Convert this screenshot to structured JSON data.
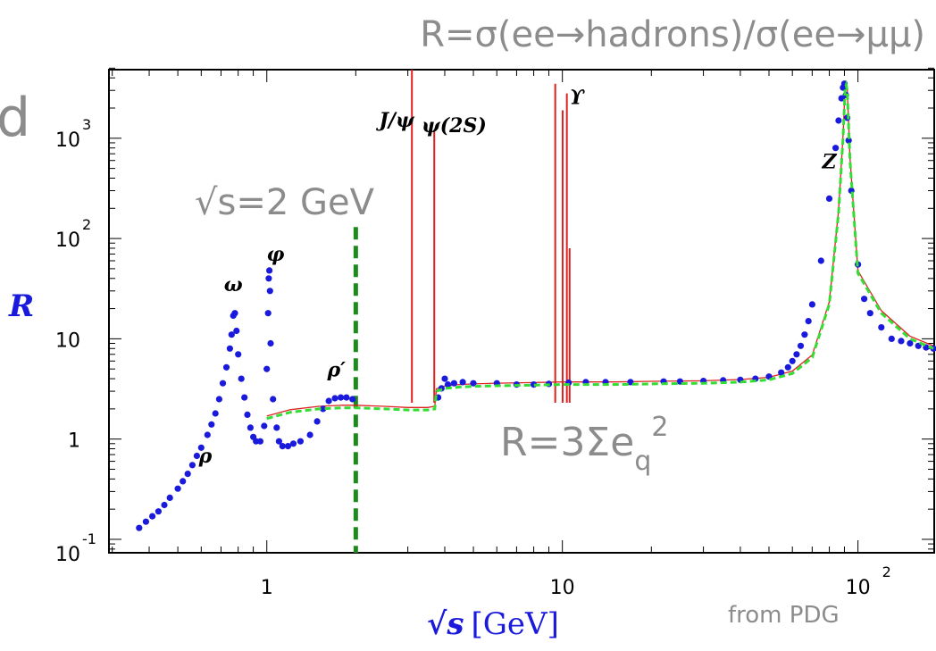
{
  "chart_data": {
    "type": "scatter",
    "title": "R=σ(ee→hadrons)/σ(ee→μμ)",
    "fragment": "d",
    "xlabel_main": "√s",
    "xlabel_unit": "[GeV]",
    "ylabel": "R",
    "x_scale": "log",
    "y_scale": "log",
    "xlim": [
      0.3,
      180
    ],
    "ylim": [
      0.1,
      5000
    ],
    "x_ticks": [
      {
        "value": 1,
        "base": "1",
        "exp": ""
      },
      {
        "value": 10,
        "base": "10",
        "exp": ""
      },
      {
        "value": 100,
        "base": "10",
        "exp": "2"
      }
    ],
    "y_ticks": [
      {
        "value": 0.1,
        "base": "10",
        "exp": "-1"
      },
      {
        "value": 1,
        "base": "1",
        "exp": ""
      },
      {
        "value": 10,
        "base": "10",
        "exp": ""
      },
      {
        "value": 100,
        "base": "10",
        "exp": "2"
      },
      {
        "value": 1000,
        "base": "10",
        "exp": "3"
      }
    ],
    "annotations": {
      "energy_cut_label": "√s=2 GeV",
      "energy_cut_value": 2,
      "parton_formula_base": "R=3Σe",
      "parton_formula_sub": "q",
      "parton_formula_sup": "2",
      "source": "from PDG"
    },
    "resonance_labels": [
      {
        "text": "ρ",
        "x": 0.62,
        "y": 0.58
      },
      {
        "text": "ω",
        "x": 0.77,
        "y": 30
      },
      {
        "text": "φ",
        "x": 1.07,
        "y": 60
      },
      {
        "text": "ρ′",
        "x": 1.72,
        "y": 4.2
      },
      {
        "text": "J/ψ",
        "x": 2.75,
        "y": 1300
      },
      {
        "text": "ψ(2S)",
        "x": 4.3,
        "y": 1150
      },
      {
        "text": "ϒ",
        "x": 11.2,
        "y": 2200
      },
      {
        "text": "Z",
        "x": 80,
        "y": 500
      }
    ],
    "series": [
      {
        "role": "measurements",
        "color": "#1a1adc",
        "x": [
          0.37,
          0.39,
          0.41,
          0.43,
          0.45,
          0.47,
          0.5,
          0.52,
          0.54,
          0.56,
          0.58,
          0.6,
          0.63,
          0.65,
          0.67,
          0.69,
          0.71,
          0.73,
          0.75,
          0.76,
          0.77,
          0.78,
          0.79,
          0.8,
          0.82,
          0.84,
          0.86,
          0.88,
          0.9,
          0.92,
          0.95,
          0.98,
          1.0,
          1.01,
          1.015,
          1.02,
          1.025,
          1.03,
          1.05,
          1.08,
          1.1,
          1.13,
          1.18,
          1.23,
          1.3,
          1.4,
          1.48,
          1.55,
          1.62,
          1.7,
          1.78,
          1.86,
          1.95,
          3.8,
          3.9,
          4.0,
          4.1,
          4.3,
          4.6,
          5.0,
          6.0,
          7.0,
          8.0,
          9.0,
          10.5,
          12,
          14,
          17,
          22,
          25,
          30,
          35,
          40,
          45,
          50,
          55,
          58,
          60,
          62,
          64,
          66,
          68,
          70,
          75,
          80,
          84,
          86,
          88,
          89,
          90,
          91,
          92,
          93,
          95,
          100,
          105,
          110,
          120,
          130,
          140,
          150,
          160,
          170,
          180
        ],
        "y": [
          0.13,
          0.15,
          0.17,
          0.19,
          0.22,
          0.26,
          0.32,
          0.38,
          0.45,
          0.55,
          0.68,
          0.82,
          1.1,
          1.4,
          1.8,
          2.5,
          3.6,
          5.2,
          8.0,
          11.0,
          17.0,
          18.0,
          12.0,
          7.0,
          4.0,
          2.6,
          1.75,
          1.3,
          1.05,
          0.95,
          0.95,
          1.35,
          5.0,
          18.0,
          40.0,
          48.0,
          30.0,
          9.0,
          2.5,
          1.3,
          0.95,
          0.85,
          0.85,
          0.9,
          0.95,
          1.1,
          1.5,
          2.0,
          2.4,
          2.55,
          2.6,
          2.6,
          2.5,
          2.6,
          3.2,
          4.0,
          3.5,
          3.6,
          3.7,
          3.6,
          3.6,
          3.5,
          3.5,
          3.55,
          3.65,
          3.7,
          3.7,
          3.7,
          3.75,
          3.75,
          3.8,
          3.85,
          3.9,
          4.0,
          4.2,
          4.6,
          5.2,
          6.0,
          7.0,
          8.5,
          11.0,
          15.0,
          22.0,
          60.0,
          250,
          800,
          1500,
          2500,
          3200,
          3500,
          2700,
          1600,
          950,
          300,
          55,
          25,
          18,
          13,
          10,
          9.5,
          9.0,
          8.5,
          8.2,
          8.0
        ]
      },
      {
        "role": "prediction",
        "color": "#33dd33",
        "x": [
          1.0,
          1.2,
          1.5,
          1.8,
          2.0,
          2.5,
          3.0,
          3.5,
          3.7,
          3.75,
          4.0,
          4.5,
          5.0,
          6.0,
          8.0,
          10.0,
          15.0,
          20.0,
          30.0,
          40.0,
          50.0,
          60.0,
          70.0,
          80.0,
          86.0,
          89.0,
          90.5,
          91.2,
          92.0,
          94.0,
          100.0,
          120.0,
          150.0,
          180.0
        ],
        "y": [
          1.6,
          1.85,
          2.0,
          2.05,
          2.05,
          2.0,
          1.95,
          1.95,
          2.0,
          3.0,
          3.2,
          3.3,
          3.35,
          3.4,
          3.45,
          3.5,
          3.5,
          3.55,
          3.6,
          3.7,
          3.9,
          4.5,
          6.5,
          22.0,
          180,
          1000,
          3200,
          3400,
          3000,
          600,
          45,
          18,
          10,
          8.0
        ]
      },
      {
        "role": "resonance-spikes",
        "color": "#dd2222",
        "points": [
          {
            "x": 3.097,
            "y": 5000
          },
          {
            "x": 3.686,
            "y": 1200
          },
          {
            "x": 9.46,
            "y": 3500
          },
          {
            "x": 10.02,
            "y": 1900
          },
          {
            "x": 10.355,
            "y": 2800
          },
          {
            "x": 10.58,
            "y": 80
          }
        ]
      }
    ]
  }
}
